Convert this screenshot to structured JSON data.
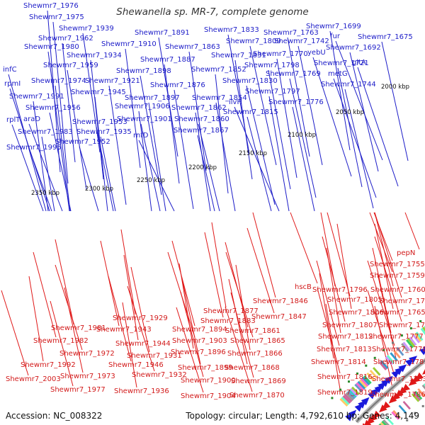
{
  "title": "Shewanella sp. MR-7, complete genome",
  "footer": {
    "accession": "Accession: NC_008322",
    "topology": "Topology: circular; Length: 4,792,610 bp; Genes: 4,149"
  },
  "ticks": [
    "2000 kbp",
    "2050 kbp",
    "2100 kbp",
    "2150 kbp",
    "2200 kbp",
    "2250 kbp",
    "2300 kbp",
    "2350 kbp"
  ],
  "top_labels": [
    "Shewmr7_1976",
    "Shewmr7_1975",
    "Shewmr7_1939",
    "Shewmr7_1891",
    "Shewmr7_1833",
    "Shewmr7_1962",
    "Shewmr7_1910",
    "Shewmr7_1863",
    "Shewmr7_1809",
    "Shewmr7_1980",
    "Shewmr7_1934",
    "Shewmr7_1887",
    "Shewmr7_1831",
    "Shewmr7_1959",
    "Shewmr7_1898",
    "Shewmr7_1852",
    "Shewmr7_1974",
    "Shewmr7_1921",
    "Shewmr7_1876",
    "Shewmr7_1830",
    "Shewmr7_1945",
    "Shewmr7_1991",
    "Shewmr7_1897",
    "Shewmr7_1854",
    "Shewmr7_1956",
    "Shewmr7_1906",
    "Shewmr7_1862",
    "Shewmr7_1953",
    "Shewmr7_1901",
    "Shewmr7_1860",
    "Shewmr7_1983",
    "Shewmr7_1935",
    "Shewmr7_1867",
    "Shewmr7_1952",
    "Shewmr7_1995",
    "Shewmr7_1699",
    "Shewmr7_1763",
    "Shewmr7_1742",
    "Shewmr7_1675",
    "Shewmr7_1692",
    "Shewmr7_1770",
    "Shewmr7_1798",
    "Shewmr7_1721",
    "Shewmr7_1769",
    "Shewmr7_1744",
    "Shewmr7_1797",
    "Shewmr7_1776",
    "Shewmr7_1815",
    "infC",
    "rpmI",
    "rplT",
    "araD",
    "rnfD",
    "ilvH",
    "fur",
    "yebU",
    "gltA",
    "metG"
  ],
  "bottom_labels": [
    "pepN",
    "Shewmr7_1755",
    "Shewmr7_1759",
    "hscB",
    "Shewmr7_1796",
    "Shewmr7_1760",
    "Shewmr7_1805",
    "Shewmr7_1761",
    "Shewmr7_1806",
    "Shewmr7_1765",
    "Shewmr7_1807",
    "Shewmr7_1767",
    "Shewmr7_1812",
    "Shewmr7_1777",
    "Shewmr7_1813",
    "Shewmr7_1778",
    "Shewmr7_1814",
    "Shewmr7_1781",
    "Shewmr7_1816",
    "Shewmr7_1783",
    "Shewmr7_1819",
    "Shewmr7_1786",
    "Shewmr7_1846",
    "Shewmr7_1847",
    "Shewmr7_1877",
    "Shewmr7_1883",
    "Shewmr7_1861",
    "Shewmr7_1865",
    "Shewmr7_1866",
    "Shewmr7_1868",
    "Shewmr7_1869",
    "Shewmr7_1870",
    "Shewmr7_1929",
    "Shewmr7_1943",
    "Shewmr7_1894",
    "Shewmr7_1903",
    "Shewmr7_1896",
    "Shewmr7_1899",
    "Shewmr7_1900",
    "Shewmr7_1904",
    "Shewmr7_1944",
    "Shewmr7_1931",
    "Shewmr7_1946",
    "Shewmr7_1932",
    "Shewmr7_1936",
    "Shewmr7_1981",
    "Shewmr7_1982",
    "Shewmr7_1972",
    "Shewmr7_1992",
    "Shewmr7_1973",
    "Shewmr7_1977",
    "Shewmr7_2003"
  ],
  "colors": {
    "forward_strand": "#1a1adc",
    "reverse_strand": "#e01818",
    "backbone": "#8a8a8a",
    "category_palette": [
      "#33cccc",
      "#66ffcc",
      "#ff66cc",
      "#3399cc",
      "#cc99ff",
      "#99cc33",
      "#ffcc66",
      "#ff9966",
      "#999999",
      "#33cc66",
      "#cc6699",
      "#6699cc"
    ]
  }
}
